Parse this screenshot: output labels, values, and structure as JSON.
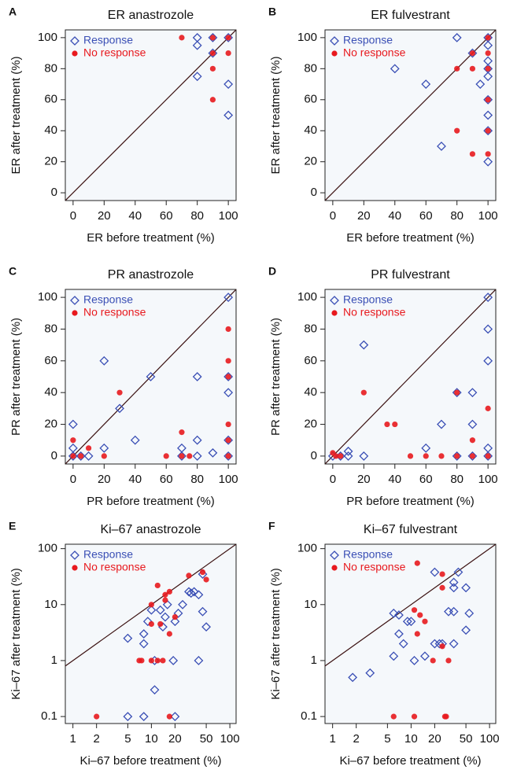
{
  "chart_data": [
    {
      "type": "scatter",
      "panel": "A",
      "title": "ER anastrozole",
      "xlabel": "ER before treatment (%)",
      "ylabel": "ER after treatment (%)",
      "log": false,
      "diagonal": true,
      "xlim": [
        -5,
        105
      ],
      "ylim": [
        -5,
        105
      ],
      "xticks": [
        0,
        20,
        40,
        60,
        80,
        100
      ],
      "yticks": [
        0,
        20,
        40,
        60,
        80,
        100
      ],
      "series": [
        {
          "name": "Response",
          "color": "#3a4fb5",
          "marker": "diamond",
          "x": [
            80,
            80,
            80,
            90,
            90,
            100,
            100,
            100
          ],
          "y": [
            100,
            95,
            75,
            100,
            90,
            100,
            70,
            50
          ]
        },
        {
          "name": "No response",
          "color": "#e8191e",
          "marker": "circle",
          "x": [
            70,
            90,
            90,
            90,
            90,
            100,
            100
          ],
          "y": [
            100,
            100,
            90,
            80,
            60,
            100,
            90
          ]
        }
      ]
    },
    {
      "type": "scatter",
      "panel": "B",
      "title": "ER fulvestrant",
      "xlabel": "ER before treatment (%)",
      "ylabel": "ER after treatment (%)",
      "log": false,
      "diagonal": true,
      "xlim": [
        -5,
        105
      ],
      "ylim": [
        -5,
        105
      ],
      "xticks": [
        0,
        20,
        40,
        60,
        80,
        100
      ],
      "yticks": [
        0,
        20,
        40,
        60,
        80,
        100
      ],
      "series": [
        {
          "name": "Response",
          "color": "#3a4fb5",
          "marker": "diamond",
          "x": [
            40,
            60,
            80,
            70,
            90,
            95,
            100,
            100,
            100,
            100,
            100,
            100,
            100,
            100,
            100
          ],
          "y": [
            80,
            70,
            100,
            30,
            90,
            70,
            100,
            95,
            85,
            80,
            75,
            60,
            50,
            40,
            20
          ]
        },
        {
          "name": "No response",
          "color": "#e8191e",
          "marker": "circle",
          "x": [
            80,
            80,
            90,
            90,
            90,
            100,
            100,
            100,
            100,
            100,
            100
          ],
          "y": [
            80,
            40,
            90,
            80,
            25,
            100,
            90,
            80,
            60,
            40,
            25
          ]
        }
      ]
    },
    {
      "type": "scatter",
      "panel": "C",
      "title": "PR anastrozole",
      "xlabel": "PR before treatment (%)",
      "ylabel": "PR after treatment (%)",
      "log": false,
      "diagonal": true,
      "xlim": [
        -5,
        105
      ],
      "ylim": [
        -5,
        105
      ],
      "xticks": [
        0,
        20,
        40,
        60,
        80,
        100
      ],
      "yticks": [
        0,
        20,
        40,
        60,
        80,
        100
      ],
      "series": [
        {
          "name": "Response",
          "color": "#3a4fb5",
          "marker": "diamond",
          "x": [
            0,
            0,
            0,
            5,
            10,
            20,
            20,
            30,
            40,
            50,
            70,
            70,
            80,
            80,
            80,
            90,
            100,
            100,
            100,
            100,
            100
          ],
          "y": [
            20,
            5,
            0,
            0,
            0,
            60,
            5,
            30,
            10,
            50,
            5,
            0,
            50,
            10,
            0,
            2,
            100,
            50,
            40,
            10,
            0
          ]
        },
        {
          "name": "No response",
          "color": "#e8191e",
          "marker": "circle",
          "x": [
            0,
            0,
            5,
            10,
            20,
            30,
            60,
            70,
            70,
            75,
            100,
            100,
            100,
            100,
            100,
            100
          ],
          "y": [
            10,
            0,
            0,
            5,
            0,
            40,
            0,
            15,
            0,
            0,
            80,
            60,
            50,
            20,
            10,
            0
          ]
        }
      ]
    },
    {
      "type": "scatter",
      "panel": "D",
      "title": "PR fulvestrant",
      "xlabel": "PR before treatment (%)",
      "ylabel": "PR after treatment (%)",
      "log": false,
      "diagonal": true,
      "xlim": [
        -5,
        105
      ],
      "ylim": [
        -5,
        105
      ],
      "xticks": [
        0,
        20,
        40,
        60,
        80,
        100
      ],
      "yticks": [
        0,
        20,
        40,
        60,
        80,
        100
      ],
      "series": [
        {
          "name": "Response",
          "color": "#3a4fb5",
          "marker": "diamond",
          "x": [
            0,
            5,
            10,
            10,
            20,
            20,
            60,
            70,
            80,
            80,
            90,
            90,
            90,
            100,
            100,
            100,
            100,
            100
          ],
          "y": [
            0,
            0,
            3,
            0,
            70,
            0,
            5,
            20,
            40,
            0,
            40,
            20,
            0,
            100,
            80,
            60,
            5,
            0
          ]
        },
        {
          "name": "No response",
          "color": "#e8191e",
          "marker": "circle",
          "x": [
            0,
            2,
            5,
            20,
            35,
            40,
            50,
            60,
            70,
            80,
            80,
            90,
            90,
            100,
            100
          ],
          "y": [
            2,
            0,
            0,
            40,
            20,
            20,
            0,
            0,
            0,
            40,
            0,
            10,
            0,
            30,
            0
          ]
        }
      ]
    },
    {
      "type": "scatter",
      "panel": "E",
      "title": "Ki–67 anastrozole",
      "xlabel": "Ki–67 before treatment (%)",
      "ylabel": "Ki–67 after treatment (%)",
      "log": true,
      "diagonal": true,
      "xlim": [
        0.8,
        120
      ],
      "ylim": [
        0.075,
        120
      ],
      "xticks": [
        1,
        2,
        5,
        10,
        20,
        50,
        100
      ],
      "yticks": [
        0.1,
        1,
        10,
        100
      ],
      "series": [
        {
          "name": "Response",
          "color": "#3a4fb5",
          "marker": "diamond",
          "x": [
            5,
            8,
            20,
            5,
            8,
            8,
            9,
            10,
            11,
            11,
            13,
            14,
            15,
            16,
            19,
            20,
            22,
            25,
            30,
            32,
            35,
            40,
            40,
            45,
            50,
            45
          ],
          "y": [
            0.1,
            0.1,
            0.1,
            2.5,
            2,
            3,
            5,
            8,
            1,
            0.3,
            8,
            4,
            6,
            10,
            1,
            5,
            7,
            10,
            17,
            16,
            17,
            15,
            1,
            7.5,
            4,
            35
          ]
        },
        {
          "name": "No response",
          "color": "#e8191e",
          "marker": "circle",
          "x": [
            2,
            17,
            7,
            7.5,
            10,
            12,
            14,
            12,
            10,
            10,
            13,
            15,
            15,
            17,
            17,
            20,
            30,
            45,
            50
          ],
          "y": [
            0.1,
            0.1,
            1,
            1,
            1,
            1,
            1,
            22,
            10,
            4.5,
            4.5,
            15,
            12,
            17,
            3,
            6,
            33,
            38,
            28
          ]
        }
      ]
    },
    {
      "type": "scatter",
      "panel": "F",
      "title": "Ki–67 fulvestrant",
      "xlabel": "Ki–67 before treatment (%)",
      "ylabel": "Ki–67 after treatment (%)",
      "log": true,
      "diagonal": true,
      "xlim": [
        0.8,
        120
      ],
      "ylim": [
        0.075,
        120
      ],
      "xticks": [
        1,
        2,
        5,
        10,
        20,
        50,
        100
      ],
      "yticks": [
        0.1,
        1,
        10,
        100
      ],
      "series": [
        {
          "name": "Response",
          "color": "#3a4fb5",
          "marker": "diamond",
          "x": [
            1.8,
            3,
            6,
            6,
            7,
            7,
            8,
            9,
            10,
            11,
            15,
            20,
            20,
            23,
            25,
            30,
            35,
            35,
            35,
            35,
            40,
            50,
            50,
            55
          ],
          "y": [
            0.5,
            0.6,
            7,
            1.2,
            6.5,
            3,
            2,
            5,
            5,
            1,
            1.2,
            38,
            2,
            2,
            2,
            7.5,
            20,
            25,
            7.5,
            2,
            38,
            20,
            3.5,
            7
          ]
        },
        {
          "name": "No response",
          "color": "#e8191e",
          "marker": "circle",
          "x": [
            6,
            11,
            12,
            11,
            12,
            13,
            15,
            19,
            25,
            25,
            25,
            27,
            28,
            30
          ],
          "y": [
            0.1,
            0.1,
            55,
            8,
            3,
            6.5,
            5,
            1,
            35,
            20,
            1.8,
            0.1,
            0.1,
            1
          ]
        }
      ]
    }
  ]
}
